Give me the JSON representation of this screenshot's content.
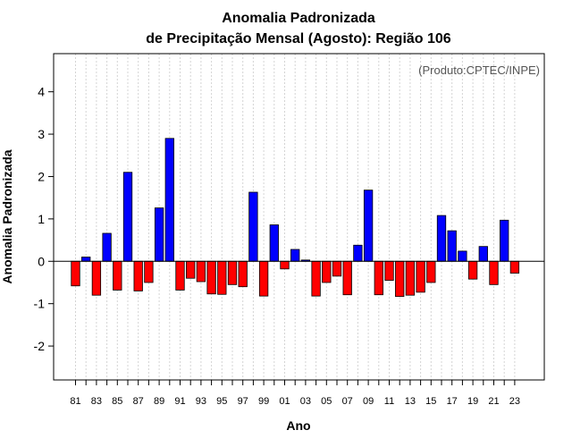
{
  "chart_data": {
    "type": "bar",
    "title_line1": "Anomalia Padronizada",
    "title_line2": "de Precipitação Mensal (Agosto): Região 106",
    "xlabel": "Ano",
    "ylabel": "Anomalia Padronizada",
    "source": "(Produto:CPTEC/INPE)",
    "ylim": [
      -2.8,
      4.9
    ],
    "yticks": [
      -2,
      -1,
      0,
      1,
      2,
      3,
      4
    ],
    "years": [
      1981,
      1982,
      1983,
      1984,
      1985,
      1986,
      1987,
      1988,
      1989,
      1990,
      1991,
      1992,
      1993,
      1994,
      1995,
      1996,
      1997,
      1998,
      1999,
      2000,
      2001,
      2002,
      2003,
      2004,
      2005,
      2006,
      2007,
      2008,
      2009,
      2010,
      2011,
      2012,
      2013,
      2014,
      2015,
      2016,
      2017,
      2018,
      2019,
      2020,
      2021,
      2022,
      2023
    ],
    "xtick_labels": [
      "81",
      "83",
      "85",
      "87",
      "89",
      "91",
      "93",
      "95",
      "97",
      "99",
      "01",
      "03",
      "05",
      "07",
      "09",
      "11",
      "13",
      "15",
      "17",
      "19",
      "21",
      "23"
    ],
    "values": [
      -0.58,
      0.1,
      -0.8,
      0.66,
      -0.68,
      2.1,
      -0.7,
      -0.5,
      1.26,
      2.9,
      -0.68,
      -0.4,
      -0.48,
      -0.77,
      -0.78,
      -0.55,
      -0.6,
      1.63,
      -0.82,
      0.86,
      -0.18,
      0.28,
      0.03,
      -0.82,
      -0.5,
      -0.35,
      -0.79,
      0.38,
      1.68,
      -0.79,
      -0.45,
      -0.83,
      -0.8,
      -0.73,
      -0.5,
      1.08,
      0.72,
      0.24,
      -0.42,
      0.35,
      -0.55,
      0.97,
      -0.28
    ],
    "colors": {
      "positive": "#0000ff",
      "negative": "#ff0000",
      "outline": "#000000",
      "grid": "#d4d4d4"
    }
  }
}
